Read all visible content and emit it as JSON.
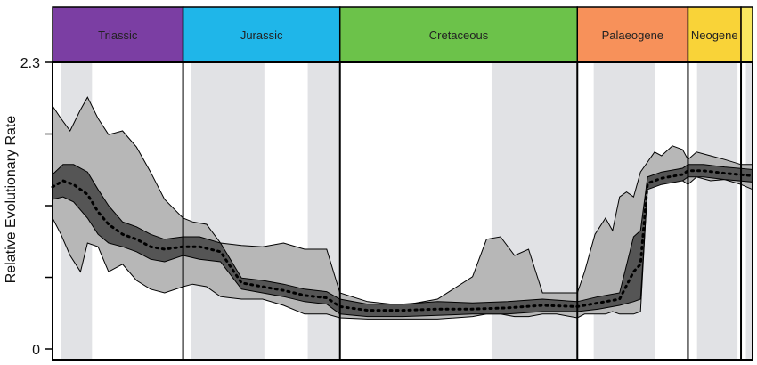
{
  "chart_data": {
    "type": "area",
    "title": "",
    "xlabel": "",
    "ylabel": "Relative Evolutionary Rate",
    "ylim": [
      0,
      2.3
    ],
    "y_ticks": [
      {
        "value": 2.3,
        "label": "2.3"
      },
      {
        "value": 1.725,
        "label": ""
      },
      {
        "value": 1.15,
        "label": ""
      },
      {
        "value": 0.575,
        "label": ""
      },
      {
        "value": 0,
        "label": "0"
      }
    ],
    "x_axis": {
      "direction": "time, oldest at left",
      "ticks_labeled": false
    },
    "grid": false,
    "periods": [
      {
        "name": "Triassic",
        "color": "#7B3EA3",
        "start": 0,
        "end": 0.1865
      },
      {
        "name": "Jurassic",
        "color": "#1FB6E9",
        "start": 0.1865,
        "end": 0.4106
      },
      {
        "name": "Cretaceous",
        "color": "#6CC24A",
        "start": 0.4106,
        "end": 0.7497
      },
      {
        "name": "Palaeogene",
        "color": "#F7915A",
        "start": 0.7497,
        "end": 0.9077
      },
      {
        "name": "Neogene",
        "color": "#F9D338",
        "start": 0.9077,
        "end": 0.9835
      },
      {
        "name": "",
        "color": "#F9E860",
        "start": 0.9835,
        "end": 1.0
      }
    ],
    "shaded_intervals": [
      [
        0.0124,
        0.0564
      ],
      [
        0.1981,
        0.3026
      ],
      [
        0.3646,
        0.4106
      ],
      [
        0.6272,
        0.7497
      ],
      [
        0.7731,
        0.8612
      ],
      [
        0.9207,
        0.9785
      ],
      [
        0.9905,
        1.0
      ]
    ],
    "series": [
      {
        "name": "",
        "role": "outer interval",
        "color": "#B7B7B7",
        "x": [
          0.0,
          0.012,
          0.025,
          0.04,
          0.05,
          0.065,
          0.08,
          0.1,
          0.12,
          0.14,
          0.16,
          0.1865,
          0.2,
          0.22,
          0.24,
          0.27,
          0.3,
          0.33,
          0.36,
          0.3916,
          0.4106,
          0.45,
          0.5,
          0.55,
          0.6,
          0.62,
          0.64,
          0.66,
          0.68,
          0.7,
          0.72,
          0.7497,
          0.76,
          0.775,
          0.79,
          0.8,
          0.81,
          0.82,
          0.83,
          0.84,
          0.85,
          0.86,
          0.87,
          0.8855,
          0.9,
          0.9077,
          0.92,
          0.94,
          0.96,
          0.9835,
          1.0
        ],
        "upper": [
          1.95,
          1.85,
          1.75,
          1.92,
          2.02,
          1.85,
          1.72,
          1.75,
          1.62,
          1.42,
          1.2,
          1.05,
          1.02,
          1.0,
          0.85,
          0.83,
          0.82,
          0.85,
          0.8,
          0.8,
          0.45,
          0.38,
          0.35,
          0.4,
          0.58,
          0.88,
          0.9,
          0.75,
          0.8,
          0.45,
          0.45,
          0.45,
          0.62,
          0.92,
          1.05,
          0.95,
          1.22,
          1.26,
          1.22,
          1.42,
          1.5,
          1.58,
          1.55,
          1.63,
          1.6,
          1.52,
          1.58,
          1.55,
          1.52,
          1.48,
          1.48
        ],
        "lower": [
          1.05,
          0.92,
          0.75,
          0.62,
          0.85,
          0.82,
          0.62,
          0.68,
          0.55,
          0.48,
          0.45,
          0.5,
          0.52,
          0.5,
          0.42,
          0.4,
          0.4,
          0.35,
          0.28,
          0.28,
          0.25,
          0.24,
          0.24,
          0.24,
          0.26,
          0.28,
          0.28,
          0.26,
          0.26,
          0.28,
          0.28,
          0.25,
          0.28,
          0.28,
          0.28,
          0.3,
          0.28,
          0.28,
          0.28,
          0.3,
          1.32,
          1.4,
          1.38,
          1.38,
          1.35,
          1.32,
          1.38,
          1.35,
          1.36,
          1.32,
          1.28
        ]
      },
      {
        "name": "",
        "role": "inner interval",
        "color": "#555555",
        "x": [
          0.0,
          0.015,
          0.03,
          0.05,
          0.065,
          0.08,
          0.1,
          0.12,
          0.14,
          0.16,
          0.1865,
          0.21,
          0.24,
          0.27,
          0.3,
          0.33,
          0.36,
          0.3916,
          0.4106,
          0.45,
          0.5,
          0.55,
          0.6,
          0.65,
          0.7,
          0.7497,
          0.78,
          0.81,
          0.83,
          0.84,
          0.85,
          0.87,
          0.9,
          0.9077,
          0.93,
          0.96,
          1.0
        ],
        "upper": [
          1.4,
          1.48,
          1.48,
          1.42,
          1.28,
          1.15,
          1.02,
          0.98,
          0.92,
          0.88,
          0.9,
          0.9,
          0.85,
          0.57,
          0.55,
          0.52,
          0.48,
          0.46,
          0.4,
          0.36,
          0.36,
          0.38,
          0.37,
          0.38,
          0.4,
          0.38,
          0.42,
          0.45,
          0.9,
          0.95,
          1.38,
          1.42,
          1.45,
          1.48,
          1.48,
          1.46,
          1.44
        ],
        "lower": [
          1.2,
          1.22,
          1.18,
          1.05,
          0.92,
          0.85,
          0.82,
          0.78,
          0.72,
          0.7,
          0.75,
          0.72,
          0.7,
          0.48,
          0.45,
          0.42,
          0.38,
          0.36,
          0.28,
          0.26,
          0.26,
          0.27,
          0.28,
          0.28,
          0.3,
          0.3,
          0.32,
          0.35,
          0.38,
          0.4,
          1.28,
          1.32,
          1.35,
          1.38,
          1.38,
          1.36,
          1.34
        ]
      },
      {
        "name": "",
        "role": "median",
        "color": "#000000",
        "dashed": true,
        "x": [
          0.0,
          0.015,
          0.03,
          0.05,
          0.065,
          0.08,
          0.1,
          0.12,
          0.14,
          0.16,
          0.1865,
          0.21,
          0.24,
          0.27,
          0.3,
          0.33,
          0.36,
          0.3916,
          0.4106,
          0.45,
          0.5,
          0.55,
          0.6,
          0.65,
          0.7,
          0.7497,
          0.78,
          0.81,
          0.83,
          0.84,
          0.85,
          0.87,
          0.9,
          0.9077,
          0.93,
          0.96,
          1.0
        ],
        "values": [
          1.3,
          1.35,
          1.32,
          1.24,
          1.1,
          1.0,
          0.92,
          0.88,
          0.82,
          0.8,
          0.82,
          0.82,
          0.78,
          0.53,
          0.5,
          0.47,
          0.43,
          0.41,
          0.34,
          0.31,
          0.31,
          0.32,
          0.32,
          0.33,
          0.35,
          0.34,
          0.37,
          0.4,
          0.62,
          0.68,
          1.33,
          1.37,
          1.4,
          1.43,
          1.43,
          1.41,
          1.39
        ]
      }
    ]
  }
}
